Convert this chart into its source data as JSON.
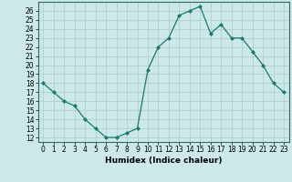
{
  "x": [
    0,
    1,
    2,
    3,
    4,
    5,
    6,
    7,
    8,
    9,
    10,
    11,
    12,
    13,
    14,
    15,
    16,
    17,
    18,
    19,
    20,
    21,
    22,
    23
  ],
  "y": [
    18,
    17,
    16,
    15.5,
    14,
    13,
    12,
    12,
    12.5,
    13,
    19.5,
    22,
    23,
    25.5,
    26,
    26.5,
    23.5,
    24.5,
    23,
    23,
    21.5,
    20,
    18,
    17
  ],
  "title": "",
  "xlabel": "Humidex (Indice chaleur)",
  "ylabel": "",
  "xlim": [
    -0.5,
    23.5
  ],
  "ylim": [
    11.5,
    27
  ],
  "yticks": [
    12,
    13,
    14,
    15,
    16,
    17,
    18,
    19,
    20,
    21,
    22,
    23,
    24,
    25,
    26
  ],
  "xticks": [
    0,
    1,
    2,
    3,
    4,
    5,
    6,
    7,
    8,
    9,
    10,
    11,
    12,
    13,
    14,
    15,
    16,
    17,
    18,
    19,
    20,
    21,
    22,
    23
  ],
  "line_color": "#1a7a6e",
  "marker_color": "#1a7a6e",
  "bg_color": "#cce8e8",
  "grid_color": "#aacccc",
  "label_fontsize": 6.5,
  "tick_fontsize": 5.5
}
